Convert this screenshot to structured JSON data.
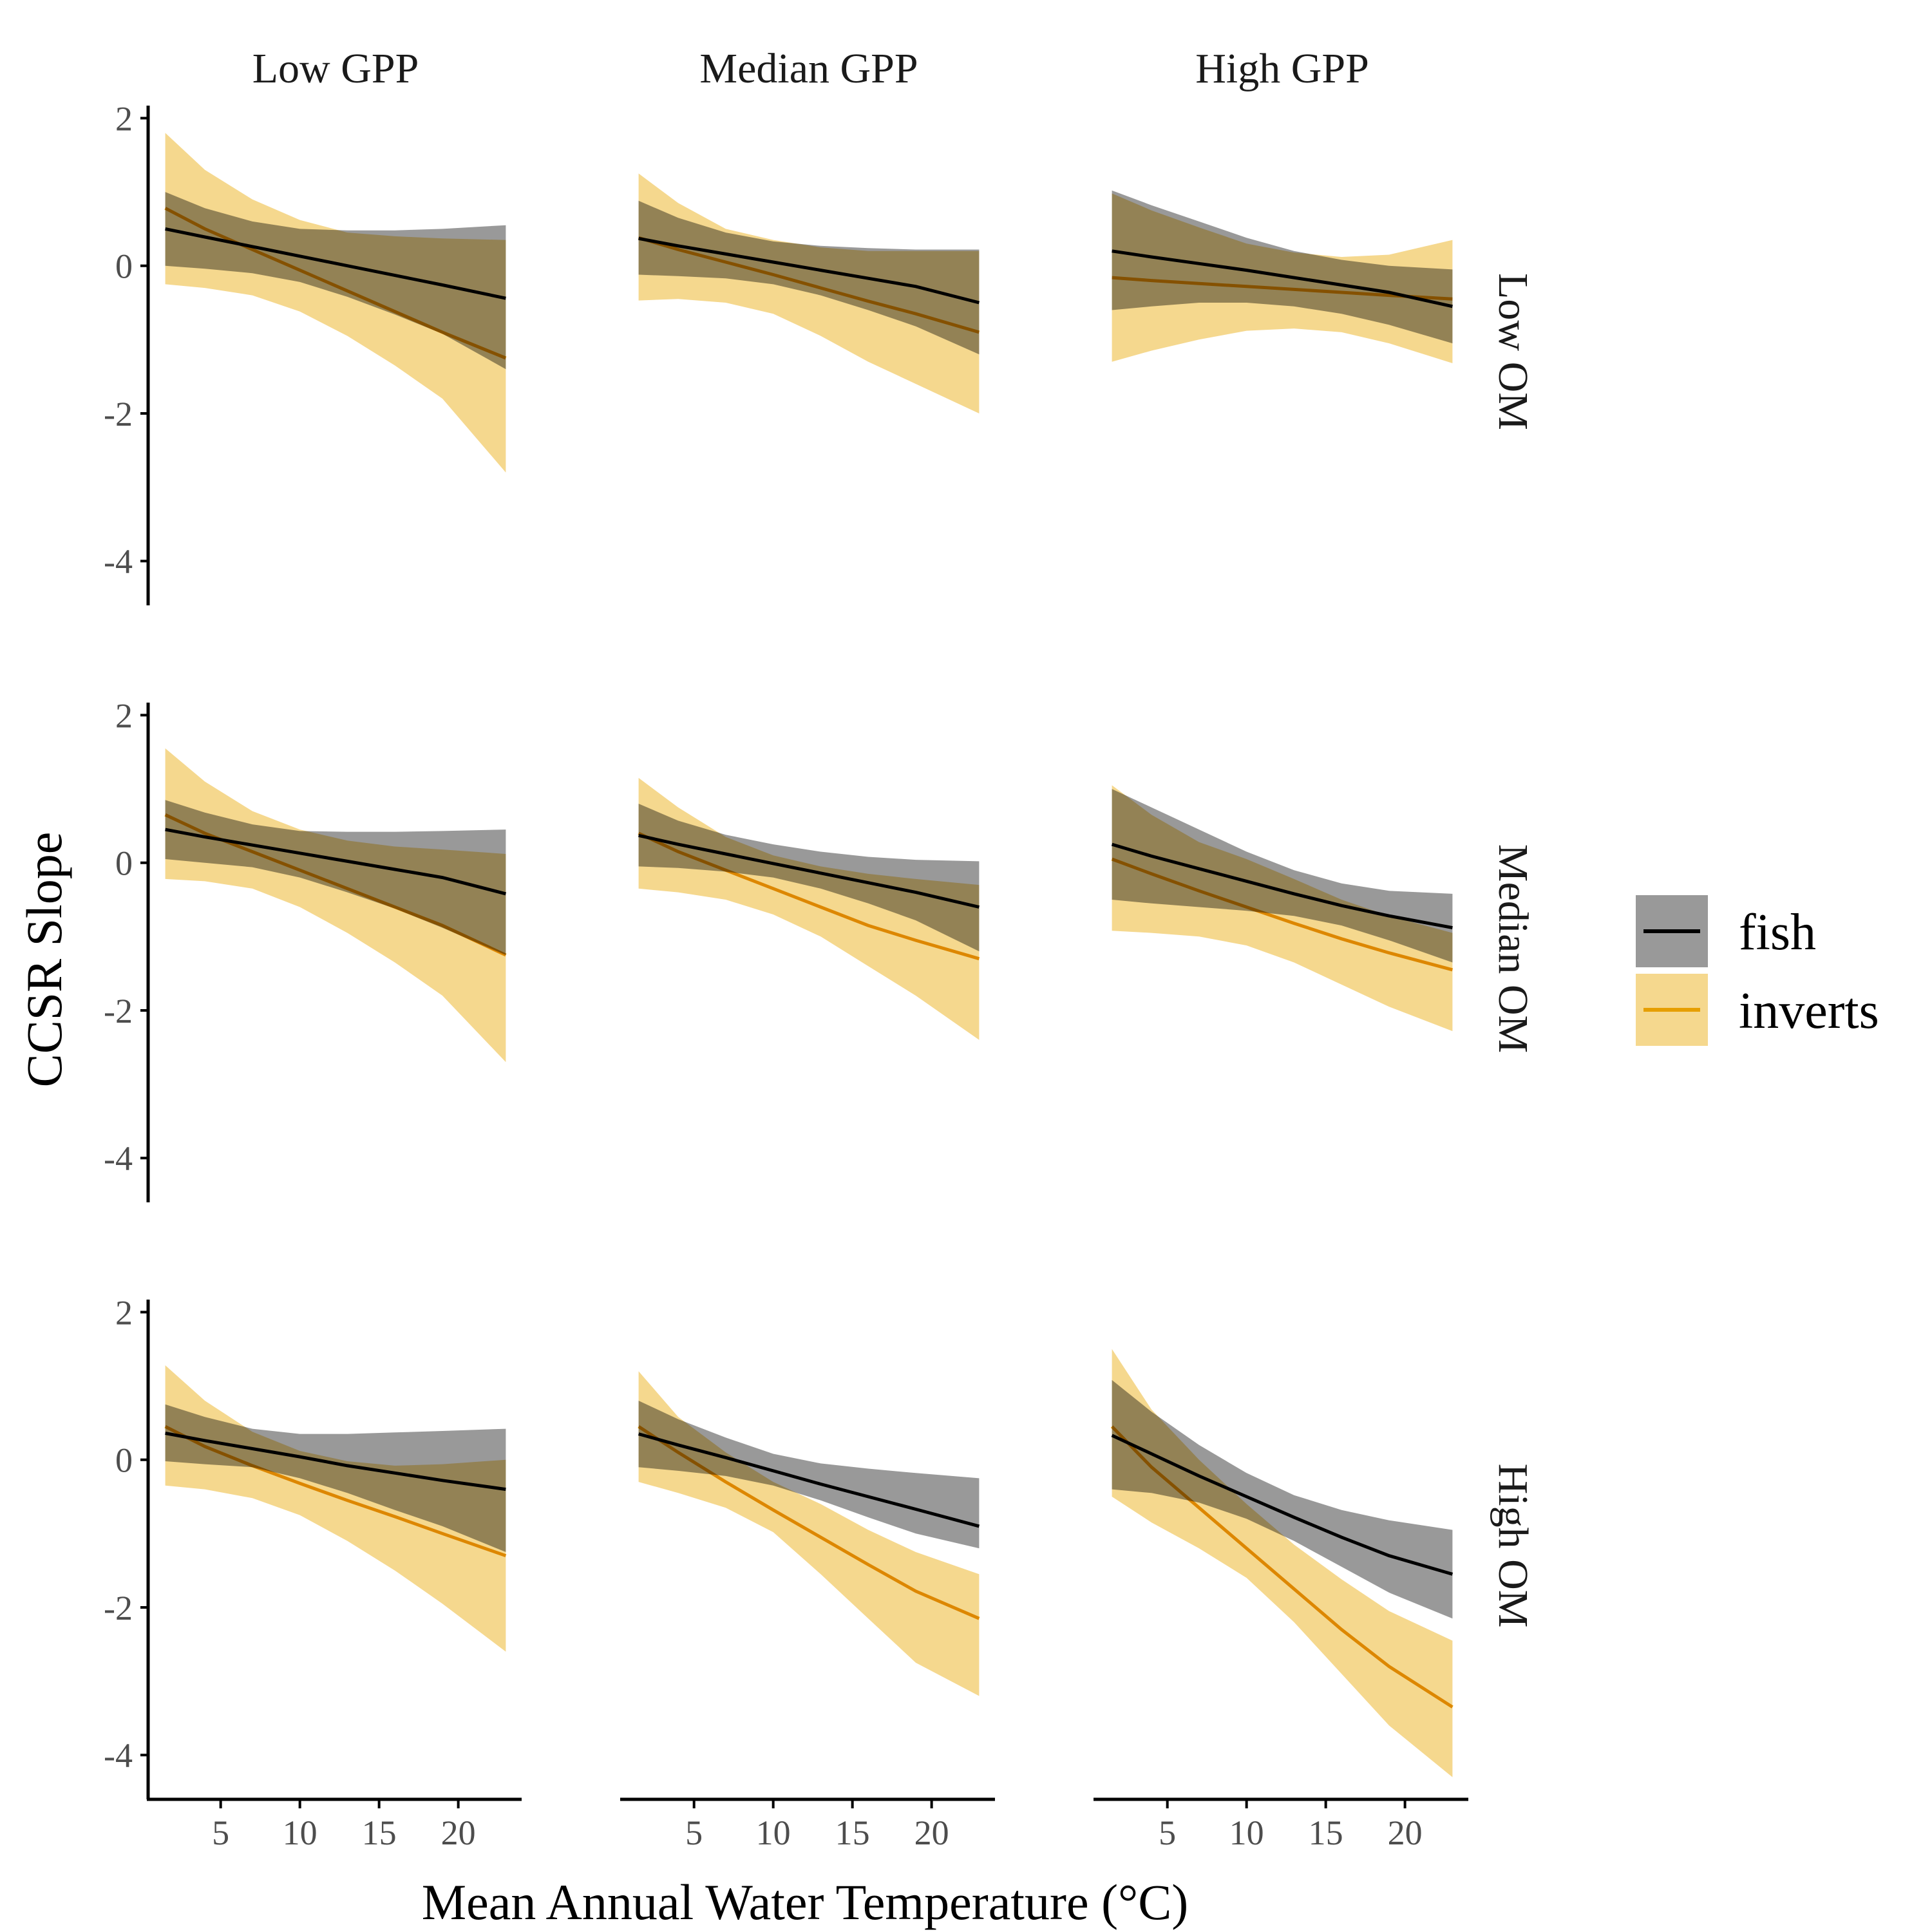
{
  "chart_data": {
    "type": "line",
    "xlabel": "Mean Annual Water Temperature (°C)",
    "ylabel": "CCSR Slope",
    "xlim": [
      0.5,
      24
    ],
    "ylim": [
      -4.6,
      2.1
    ],
    "xticks": [
      5,
      10,
      15,
      20
    ],
    "yticks": [
      -4,
      -2,
      0,
      2
    ],
    "column_labels": [
      "Low GPP",
      "Median GPP",
      "High GPP"
    ],
    "row_labels": [
      "Low OM",
      "Median OM",
      "High OM"
    ],
    "legend": {
      "position": "right",
      "entries": [
        {
          "label": "fish",
          "line_color": "#000000",
          "fill_color": "#999999"
        },
        {
          "label": "inverts",
          "line_color": "#E69F00",
          "fill_color": "#F5D88E"
        }
      ]
    },
    "x": [
      1.5,
      4,
      7,
      10,
      13,
      16,
      19,
      23
    ],
    "panels": [
      {
        "row": "Low OM",
        "column": "Low GPP",
        "fish": {
          "fit": [
            0.5,
            0.39,
            0.26,
            0.13,
            0.0,
            -0.13,
            -0.26,
            -0.44
          ],
          "lower": [
            0.0,
            -0.04,
            -0.1,
            -0.22,
            -0.42,
            -0.66,
            -0.92,
            -1.4
          ],
          "upper": [
            1.0,
            0.78,
            0.6,
            0.5,
            0.48,
            0.48,
            0.5,
            0.55
          ]
        },
        "inverts": {
          "fit": [
            0.78,
            0.5,
            0.22,
            -0.06,
            -0.34,
            -0.62,
            -0.9,
            -1.25
          ],
          "lower": [
            -0.25,
            -0.3,
            -0.4,
            -0.62,
            -0.95,
            -1.35,
            -1.8,
            -2.8
          ],
          "upper": [
            1.8,
            1.3,
            0.9,
            0.62,
            0.45,
            0.4,
            0.37,
            0.35
          ]
        }
      },
      {
        "row": "Low OM",
        "column": "Median GPP",
        "fish": {
          "fit": [
            0.37,
            0.27,
            0.16,
            0.05,
            -0.06,
            -0.17,
            -0.28,
            -0.5
          ],
          "lower": [
            -0.12,
            -0.14,
            -0.17,
            -0.25,
            -0.4,
            -0.6,
            -0.82,
            -1.2
          ],
          "upper": [
            0.88,
            0.65,
            0.45,
            0.33,
            0.27,
            0.24,
            0.22,
            0.22
          ]
        },
        "inverts": {
          "fit": [
            0.38,
            0.22,
            0.05,
            -0.12,
            -0.3,
            -0.48,
            -0.65,
            -0.9
          ],
          "lower": [
            -0.47,
            -0.45,
            -0.5,
            -0.65,
            -0.95,
            -1.3,
            -1.6,
            -2.0
          ],
          "upper": [
            1.25,
            0.85,
            0.5,
            0.35,
            0.25,
            0.2,
            0.2,
            0.2
          ]
        }
      },
      {
        "row": "Low OM",
        "column": "High GPP",
        "fish": {
          "fit": [
            0.2,
            0.12,
            0.03,
            -0.06,
            -0.16,
            -0.26,
            -0.36,
            -0.55
          ],
          "lower": [
            -0.6,
            -0.55,
            -0.5,
            -0.5,
            -0.55,
            -0.65,
            -0.8,
            -1.05
          ],
          "upper": [
            1.02,
            0.82,
            0.6,
            0.38,
            0.2,
            0.08,
            0.0,
            -0.05
          ]
        },
        "inverts": {
          "fit": [
            -0.16,
            -0.2,
            -0.24,
            -0.28,
            -0.32,
            -0.36,
            -0.4,
            -0.45
          ],
          "lower": [
            -1.3,
            -1.15,
            -1.0,
            -0.88,
            -0.85,
            -0.9,
            -1.05,
            -1.32
          ],
          "upper": [
            0.98,
            0.75,
            0.52,
            0.3,
            0.18,
            0.12,
            0.15,
            0.35
          ]
        }
      },
      {
        "row": "Median OM",
        "column": "Low GPP",
        "fish": {
          "fit": [
            0.45,
            0.35,
            0.24,
            0.13,
            0.02,
            -0.09,
            -0.2,
            -0.42
          ],
          "lower": [
            0.05,
            0.0,
            -0.06,
            -0.2,
            -0.4,
            -0.62,
            -0.88,
            -1.25
          ],
          "upper": [
            0.85,
            0.68,
            0.52,
            0.43,
            0.42,
            0.42,
            0.43,
            0.45
          ]
        },
        "inverts": {
          "fit": [
            0.65,
            0.4,
            0.15,
            -0.1,
            -0.35,
            -0.6,
            -0.85,
            -1.25
          ],
          "lower": [
            -0.22,
            -0.25,
            -0.35,
            -0.6,
            -0.95,
            -1.35,
            -1.8,
            -2.7
          ],
          "upper": [
            1.55,
            1.1,
            0.7,
            0.45,
            0.3,
            0.22,
            0.18,
            0.12
          ]
        }
      },
      {
        "row": "Median OM",
        "column": "Median GPP",
        "fish": {
          "fit": [
            0.37,
            0.25,
            0.12,
            -0.01,
            -0.14,
            -0.27,
            -0.4,
            -0.6
          ],
          "lower": [
            -0.05,
            -0.07,
            -0.12,
            -0.2,
            -0.35,
            -0.55,
            -0.78,
            -1.2
          ],
          "upper": [
            0.8,
            0.57,
            0.38,
            0.25,
            0.15,
            0.08,
            0.04,
            0.02
          ]
        },
        "inverts": {
          "fit": [
            0.4,
            0.15,
            -0.1,
            -0.35,
            -0.6,
            -0.85,
            -1.05,
            -1.3
          ],
          "lower": [
            -0.35,
            -0.4,
            -0.5,
            -0.7,
            -1.0,
            -1.4,
            -1.8,
            -2.4
          ],
          "upper": [
            1.15,
            0.75,
            0.35,
            0.1,
            -0.05,
            -0.15,
            -0.22,
            -0.3
          ]
        }
      },
      {
        "row": "Median OM",
        "column": "High GPP",
        "fish": {
          "fit": [
            0.25,
            0.09,
            -0.08,
            -0.25,
            -0.42,
            -0.58,
            -0.72,
            -0.88
          ],
          "lower": [
            -0.5,
            -0.55,
            -0.6,
            -0.65,
            -0.72,
            -0.85,
            -1.05,
            -1.35
          ],
          "upper": [
            1.0,
            0.75,
            0.45,
            0.15,
            -0.1,
            -0.28,
            -0.38,
            -0.42
          ]
        },
        "inverts": {
          "fit": [
            0.05,
            -0.15,
            -0.38,
            -0.6,
            -0.82,
            -1.03,
            -1.22,
            -1.45
          ],
          "lower": [
            -0.92,
            -0.95,
            -1.0,
            -1.12,
            -1.35,
            -1.65,
            -1.95,
            -2.28
          ],
          "upper": [
            1.05,
            0.65,
            0.28,
            0.05,
            -0.22,
            -0.5,
            -0.72,
            -0.95
          ]
        }
      },
      {
        "row": "High OM",
        "column": "Low GPP",
        "fish": {
          "fit": [
            0.36,
            0.26,
            0.15,
            0.04,
            -0.08,
            -0.18,
            -0.28,
            -0.4
          ],
          "lower": [
            -0.02,
            -0.06,
            -0.1,
            -0.25,
            -0.45,
            -0.68,
            -0.9,
            -1.25
          ],
          "upper": [
            0.75,
            0.58,
            0.42,
            0.35,
            0.35,
            0.37,
            0.39,
            0.42
          ]
        },
        "inverts": {
          "fit": [
            0.45,
            0.18,
            -0.08,
            -0.32,
            -0.55,
            -0.77,
            -1.0,
            -1.3
          ],
          "lower": [
            -0.35,
            -0.4,
            -0.52,
            -0.75,
            -1.1,
            -1.5,
            -1.95,
            -2.6
          ],
          "upper": [
            1.28,
            0.8,
            0.38,
            0.12,
            -0.02,
            -0.08,
            -0.06,
            0.0
          ]
        }
      },
      {
        "row": "High OM",
        "column": "Median GPP",
        "fish": {
          "fit": [
            0.35,
            0.2,
            0.03,
            -0.15,
            -0.33,
            -0.5,
            -0.67,
            -0.9
          ],
          "lower": [
            -0.1,
            -0.15,
            -0.22,
            -0.35,
            -0.55,
            -0.78,
            -1.0,
            -1.2
          ],
          "upper": [
            0.8,
            0.55,
            0.3,
            0.08,
            -0.05,
            -0.12,
            -0.18,
            -0.25
          ]
        },
        "inverts": {
          "fit": [
            0.45,
            0.1,
            -0.3,
            -0.68,
            -1.05,
            -1.42,
            -1.78,
            -2.15
          ],
          "lower": [
            -0.3,
            -0.45,
            -0.65,
            -0.98,
            -1.55,
            -2.15,
            -2.75,
            -3.2
          ],
          "upper": [
            1.2,
            0.58,
            0.1,
            -0.3,
            -0.6,
            -0.95,
            -1.25,
            -1.55
          ]
        }
      },
      {
        "row": "High OM",
        "column": "High GPP",
        "fish": {
          "fit": [
            0.33,
            0.08,
            -0.22,
            -0.5,
            -0.78,
            -1.05,
            -1.3,
            -1.55
          ],
          "lower": [
            -0.4,
            -0.45,
            -0.58,
            -0.8,
            -1.1,
            -1.45,
            -1.8,
            -2.15
          ],
          "upper": [
            1.08,
            0.65,
            0.2,
            -0.18,
            -0.48,
            -0.68,
            -0.82,
            -0.95
          ]
        },
        "inverts": {
          "fit": [
            0.45,
            -0.1,
            -0.65,
            -1.2,
            -1.75,
            -2.3,
            -2.8,
            -3.35
          ],
          "lower": [
            -0.5,
            -0.85,
            -1.2,
            -1.6,
            -2.2,
            -2.9,
            -3.6,
            -4.3
          ],
          "upper": [
            1.5,
            0.68,
            0.0,
            -0.6,
            -1.15,
            -1.62,
            -2.05,
            -2.45
          ]
        }
      }
    ]
  }
}
